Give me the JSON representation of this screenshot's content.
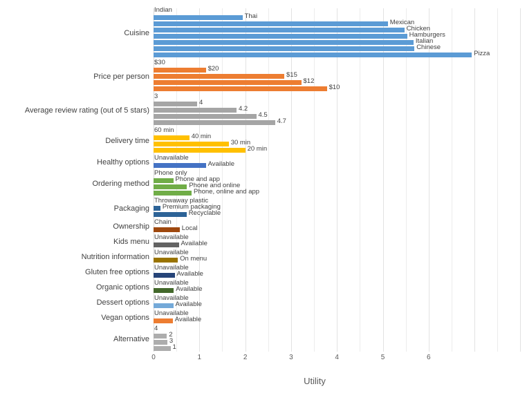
{
  "chart_data": {
    "type": "bar",
    "orientation": "horizontal",
    "title": "",
    "xlabel": "Utility",
    "ylabel": "",
    "xlim": [
      0,
      8
    ],
    "xticks": [
      0,
      1,
      2,
      3,
      4,
      5,
      6
    ],
    "grid": "vertical, every 0.5 units",
    "legend_position": "none",
    "groups": [
      {
        "category": "Cuisine",
        "color": "#5B9BD5",
        "levels": [
          {
            "label": "Indian",
            "value": 0
          },
          {
            "label": "Thai",
            "value": 1.94
          },
          {
            "label": "Mexican",
            "value": 5.11
          },
          {
            "label": "Chicken",
            "value": 5.47
          },
          {
            "label": "Hamburgers",
            "value": 5.53
          },
          {
            "label": "Italian",
            "value": 5.67
          },
          {
            "label": "Chinese",
            "value": 5.69
          },
          {
            "label": "Pizza",
            "value": 6.94
          }
        ]
      },
      {
        "category": "Price per person",
        "color": "#ED7D31",
        "levels": [
          {
            "label": "$30",
            "value": 0
          },
          {
            "label": "$20",
            "value": 1.14
          },
          {
            "label": "$15",
            "value": 2.85
          },
          {
            "label": "$12",
            "value": 3.22
          },
          {
            "label": "$10",
            "value": 3.78
          }
        ]
      },
      {
        "category": "Average review rating (out of 5 stars)",
        "color": "#A5A5A5",
        "levels": [
          {
            "label": "3",
            "value": 0
          },
          {
            "label": "4",
            "value": 0.95
          },
          {
            "label": "4.2",
            "value": 1.81
          },
          {
            "label": "4.5",
            "value": 2.24
          },
          {
            "label": "4.7",
            "value": 2.65
          }
        ]
      },
      {
        "category": "Delivery time",
        "color": "#FFC000",
        "levels": [
          {
            "label": "60 min",
            "value": 0
          },
          {
            "label": "40 min",
            "value": 0.78
          },
          {
            "label": "30 min",
            "value": 1.64
          },
          {
            "label": "20 min",
            "value": 2.0
          }
        ]
      },
      {
        "category": "Healthy options",
        "color": "#4472C4",
        "levels": [
          {
            "label": "Unavailable",
            "value": 0
          },
          {
            "label": "Available",
            "value": 1.14
          }
        ]
      },
      {
        "category": "Ordering method",
        "color": "#70AD47",
        "levels": [
          {
            "label": "Phone only",
            "value": 0
          },
          {
            "label": "Phone and app",
            "value": 0.43
          },
          {
            "label": "Phone and online",
            "value": 0.73
          },
          {
            "label": "Phone, online and app",
            "value": 0.83
          }
        ]
      },
      {
        "category": "Packaging",
        "color": "#2D6397",
        "levels": [
          {
            "label": "Throwaway plastic",
            "value": 0
          },
          {
            "label": "Premium packaging",
            "value": 0.15
          },
          {
            "label": "Recyclable",
            "value": 0.72
          }
        ]
      },
      {
        "category": "Ownership",
        "color": "#9E480E",
        "levels": [
          {
            "label": "Chain",
            "value": 0
          },
          {
            "label": "Local",
            "value": 0.57
          }
        ]
      },
      {
        "category": "Kids menu",
        "color": "#636363",
        "levels": [
          {
            "label": "Unavailable",
            "value": 0
          },
          {
            "label": "Available",
            "value": 0.55
          }
        ]
      },
      {
        "category": "Nutrition information",
        "color": "#997300",
        "levels": [
          {
            "label": "Unavailable",
            "value": 0
          },
          {
            "label": "On menu",
            "value": 0.53
          }
        ]
      },
      {
        "category": "Gluten free options",
        "color": "#264478",
        "levels": [
          {
            "label": "Unavailable",
            "value": 0
          },
          {
            "label": "Available",
            "value": 0.46
          }
        ]
      },
      {
        "category": "Organic options",
        "color": "#43682B",
        "levels": [
          {
            "label": "Unavailable",
            "value": 0
          },
          {
            "label": "Available",
            "value": 0.44
          }
        ]
      },
      {
        "category": "Dessert options",
        "color": "#74A9D8",
        "levels": [
          {
            "label": "Unavailable",
            "value": 0
          },
          {
            "label": "Available",
            "value": 0.43
          }
        ]
      },
      {
        "category": "Vegan options",
        "color": "#ED7D31",
        "levels": [
          {
            "label": "Unavailable",
            "value": 0
          },
          {
            "label": "Available",
            "value": 0.42
          }
        ]
      },
      {
        "category": "Alternative",
        "color": "#ADADAD",
        "levels": [
          {
            "label": "4",
            "value": 0
          },
          {
            "label": "2",
            "value": 0.29
          },
          {
            "label": "3",
            "value": 0.3
          },
          {
            "label": "1",
            "value": 0.37
          }
        ]
      }
    ]
  }
}
